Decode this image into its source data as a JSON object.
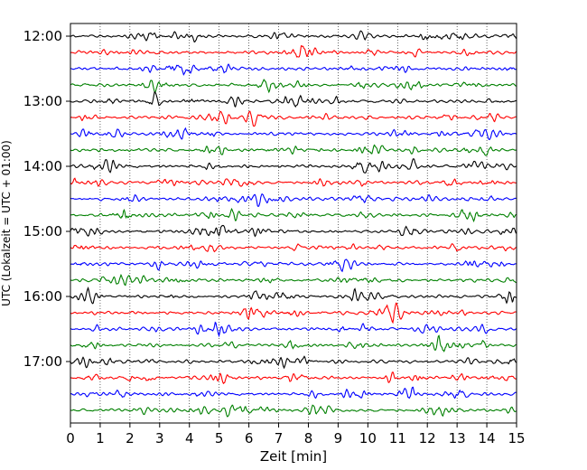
{
  "chart_data": {
    "type": "line",
    "title": "",
    "xlabel": "Zeit  [min]",
    "ylabel": "UTC (Lokalzeit = UTC + 01:00)",
    "xlim": [
      0,
      15
    ],
    "x_ticks": [
      0,
      1,
      2,
      3,
      4,
      5,
      6,
      7,
      8,
      9,
      10,
      11,
      12,
      13,
      14,
      15
    ],
    "y_tick_labels": [
      "12:00",
      "13:00",
      "14:00",
      "15:00",
      "16:00",
      "17:00"
    ],
    "traces_per_hour": 4,
    "trace_count": 24,
    "minutes_per_trace": 15,
    "trace_colors": [
      "#000000",
      "#ff0000",
      "#0000ff",
      "#008000"
    ],
    "grid": "vertical dotted lines at each minute",
    "legend": "none"
  }
}
